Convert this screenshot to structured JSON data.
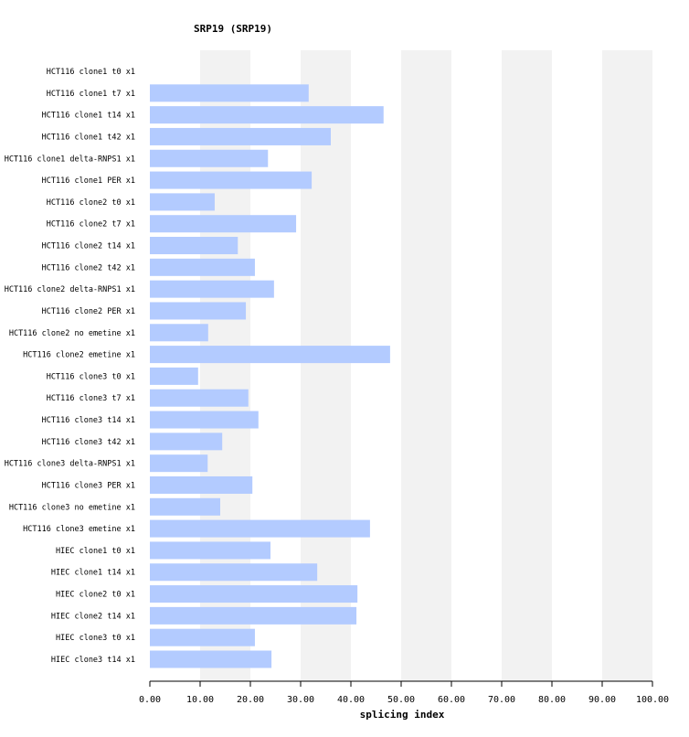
{
  "chart_data": {
    "type": "bar",
    "orientation": "horizontal",
    "title": "SRP19 (SRP19)",
    "xlabel": "splicing index",
    "ylabel": "",
    "xlim": [
      0,
      100
    ],
    "xticks": [
      "0.00",
      "10.00",
      "20.00",
      "30.00",
      "40.00",
      "50.00",
      "60.00",
      "70.00",
      "80.00",
      "90.00",
      "100.00"
    ],
    "grid": "alternating vertical bands",
    "bar_color": "#b3cbff",
    "band_color": "#f2f2f2",
    "categories": [
      "HCT116 clone1 t0 x1",
      "HCT116 clone1 t7 x1",
      "HCT116 clone1 t14 x1",
      "HCT116 clone1 t42 x1",
      "HCT116 clone1 delta-RNPS1 x1",
      "HCT116 clone1 PER x1",
      "HCT116 clone2 t0 x1",
      "HCT116 clone2 t7 x1",
      "HCT116 clone2 t14 x1",
      "HCT116 clone2 t42 x1",
      "HCT116 clone2 delta-RNPS1 x1",
      "HCT116 clone2 PER x1",
      "HCT116 clone2 no emetine x1",
      "HCT116 clone2 emetine x1",
      "HCT116 clone3 t0 x1",
      "HCT116 clone3 t7 x1",
      "HCT116 clone3 t14 x1",
      "HCT116 clone3 t42 x1",
      "HCT116 clone3 delta-RNPS1 x1",
      "HCT116 clone3 PER x1",
      "HCT116 clone3 no emetine x1",
      "HCT116 clone3 emetine x1",
      "HIEC clone1 t0 x1",
      "HIEC clone1 t14 x1",
      "HIEC clone2 t0 x1",
      "HIEC clone2 t14 x1",
      "HIEC clone3 t0 x1",
      "HIEC clone3 t14 x1"
    ],
    "values": [
      0,
      31.6,
      46.5,
      36.0,
      23.5,
      32.2,
      12.9,
      29.1,
      17.5,
      20.9,
      24.7,
      19.1,
      11.6,
      47.8,
      9.6,
      19.6,
      21.6,
      14.4,
      11.5,
      20.4,
      14.0,
      43.8,
      24.0,
      33.3,
      41.3,
      41.1,
      20.9,
      24.2
    ]
  }
}
